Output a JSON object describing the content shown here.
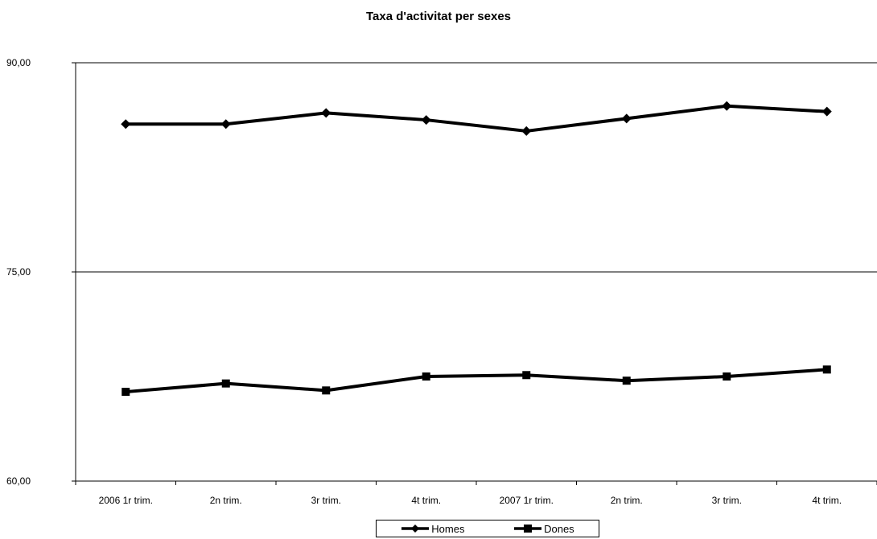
{
  "chart_data": {
    "type": "line",
    "title": "Taxa d'activitat per sexes",
    "categories": [
      "2006 1r trim.",
      "2n trim.",
      "3r trim.",
      "4t trim.",
      "2007 1r trim.",
      "2n trim.",
      "3r trim.",
      "4t trim."
    ],
    "series": [
      {
        "name": "Homes",
        "marker": "diamond",
        "color": "#000000",
        "values": [
          85.6,
          85.6,
          86.4,
          85.9,
          85.1,
          86.0,
          86.9,
          86.5
        ]
      },
      {
        "name": "Dones",
        "marker": "square",
        "color": "#000000",
        "values": [
          66.4,
          67.0,
          66.5,
          67.5,
          67.6,
          67.2,
          67.5,
          68.0
        ]
      }
    ],
    "ylim": [
      60,
      90
    ],
    "yticks": [
      "60,00",
      "75,00",
      "90,00"
    ],
    "ytick_values": [
      60,
      75,
      90
    ],
    "gridlines": true,
    "legend_position": "bottom"
  }
}
